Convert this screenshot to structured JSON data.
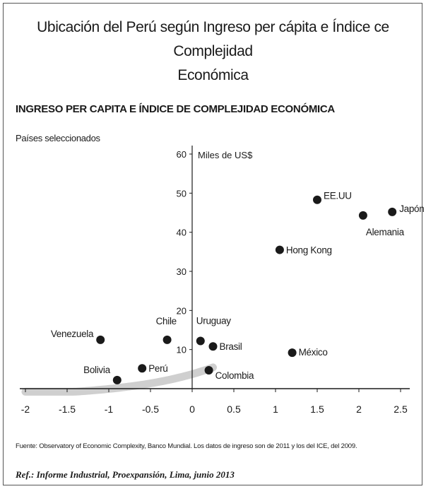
{
  "title_line1": "Ubicación del Perú según Ingreso per cápita e Índice ce Complejidad",
  "title_line2": "Económica",
  "chart_data": {
    "type": "scatter",
    "title": "INGRESO PER CAPITA E ÍNDICE DE COMPLEJIDAD ECONÓMICA",
    "subtitle": "Países seleccionados",
    "ylabel": "Miles de US$",
    "xlim": [
      -2,
      2.5
    ],
    "ylim": [
      0,
      60
    ],
    "x_ticks": [
      "-2",
      "-1.5",
      "-1",
      "-0.5",
      "0",
      "0.5",
      "1",
      "1.5",
      "2",
      "2.5"
    ],
    "y_ticks": [
      "10",
      "20",
      "30",
      "40",
      "50",
      "60"
    ],
    "points": [
      {
        "label": "Venezuela",
        "x": -1.1,
        "y": 12.5
      },
      {
        "label": "Bolivia",
        "x": -0.9,
        "y": 2.2
      },
      {
        "label": "Perú",
        "x": -0.6,
        "y": 5.2
      },
      {
        "label": "Chile",
        "x": -0.3,
        "y": 12.5
      },
      {
        "label": "Uruguay",
        "x": 0.1,
        "y": 12.2
      },
      {
        "label": "Brasil",
        "x": 0.25,
        "y": 10.8
      },
      {
        "label": "Colombia",
        "x": 0.2,
        "y": 4.7
      },
      {
        "label": "México",
        "x": 1.2,
        "y": 9.2
      },
      {
        "label": "Hong Kong",
        "x": 1.05,
        "y": 35.5
      },
      {
        "label": "EE.UU",
        "x": 1.5,
        "y": 48.3
      },
      {
        "label": "Alemania",
        "x": 2.05,
        "y": 44.3
      },
      {
        "label": "Japón",
        "x": 2.4,
        "y": 45.2
      }
    ],
    "trend": "exponential",
    "grid": false
  },
  "source": "Fuente: Observatory of Economic Complexity, Banco Mundial. Los datos de ingreso son de 2011 y los del ICE, del 2009.",
  "ref": "Ref.: Informe Industrial, Proexpansión, Lima, junio 2013",
  "colors": {
    "trend": "#cfcfcf",
    "point": "#1a1a1a",
    "axis": "#1a1a1a"
  }
}
